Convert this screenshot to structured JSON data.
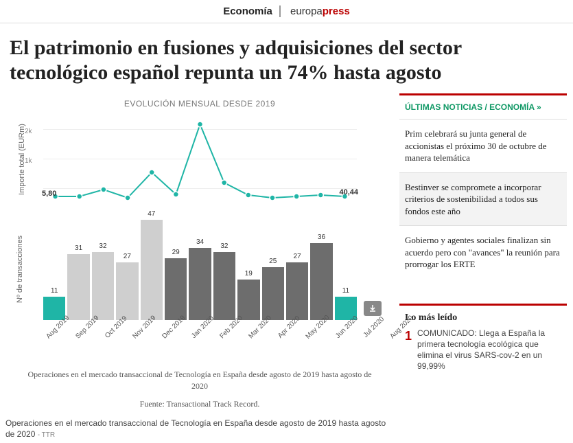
{
  "topbar": {
    "section": "Economía",
    "brand1": "europa",
    "brand2": "press"
  },
  "headline": "El patrimonio en fusiones y adquisiciones del sector tecnológico español repunta un 74% hasta agosto",
  "chart": {
    "title": "EVOLUCIÓN MENSUAL DESDE 2019",
    "y_top_label": "Importe total (EURm)",
    "y_bot_label": "Nº de transacciones",
    "y_top_ticks": [
      "2k",
      "1k"
    ],
    "categories": [
      "Aug 2019",
      "Sep 2019",
      "Oct 2019",
      "Nov 2019",
      "Dec 2019",
      "Jan 2020",
      "Feb 2020",
      "Mar 2020",
      "Apr 2020",
      "May 2020",
      "Jun 2020",
      "Jul 2020",
      "Aug 2020"
    ],
    "bars": [
      11,
      31,
      32,
      27,
      47,
      29,
      34,
      32,
      19,
      25,
      27,
      36,
      11
    ],
    "bar_max": 50,
    "bar_colors": [
      "#1fb5a6",
      "#cfcfcf",
      "#cfcfcf",
      "#cfcfcf",
      "#cfcfcf",
      "#6d6d6d",
      "#6d6d6d",
      "#6d6d6d",
      "#6d6d6d",
      "#6d6d6d",
      "#6d6d6d",
      "#6d6d6d",
      "#1fb5a6"
    ],
    "line": [
      110,
      110,
      100,
      112,
      75,
      107,
      5,
      90,
      108,
      112,
      110,
      108,
      110
    ],
    "line_color": "#1fb5a6",
    "callout_left": "5,80",
    "callout_right": "40,44",
    "caption": "Operaciones en el mercado transaccional de Tecnología en España desde agosto de 2019 hasta agosto de 2020",
    "source": "Fuente: Transactional Track Record."
  },
  "caption": {
    "text": "Operaciones en el mercado transaccional de Tecnología en España desde agosto de 2019 hasta agosto de 2020",
    "src": "- TTR"
  },
  "sidebar": {
    "head": "ÚLTIMAS NOTICIAS / ECONOMÍA »",
    "items": [
      "Prim celebrará su junta general de accionistas el próximo 30 de octubre de manera telemática",
      "Bestinver se compromete a incorporar criterios de sostenibilidad a todos sus fondos este año",
      "Gobierno y agentes sociales finalizan sin acuerdo pero con \"avances\" la reunión para prorrogar los ERTE"
    ],
    "mostread_h": "Lo más leído",
    "mostread": [
      {
        "n": "1",
        "t": "COMUNICADO: Llega a España la primera tecnología ecológica que elimina el virus SARS-cov-2 en un 99,99%"
      }
    ]
  }
}
